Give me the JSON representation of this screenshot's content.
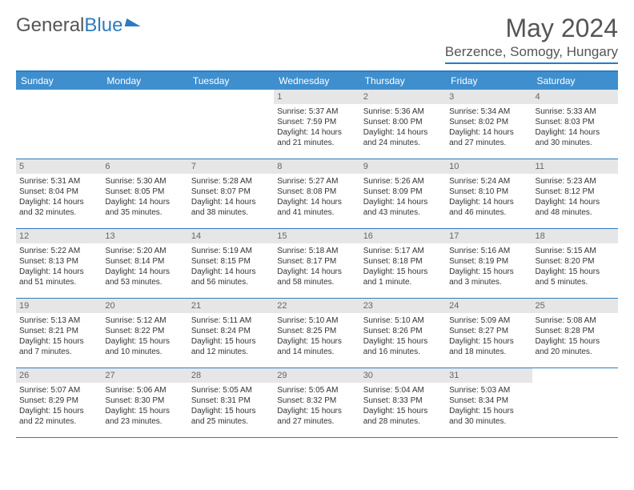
{
  "branding": {
    "logo_text_1": "General",
    "logo_text_2": "Blue"
  },
  "header": {
    "month_title": "May 2024",
    "location": "Berzence, Somogy, Hungary"
  },
  "dow": [
    "Sunday",
    "Monday",
    "Tuesday",
    "Wednesday",
    "Thursday",
    "Friday",
    "Saturday"
  ],
  "colors": {
    "header_bar": "#3f8fce",
    "rule": "#2f7bbf",
    "day_num_bg": "#e6e6e6",
    "text": "#333333"
  },
  "weeks": [
    [
      {
        "n": "",
        "empty": true
      },
      {
        "n": "",
        "empty": true
      },
      {
        "n": "",
        "empty": true
      },
      {
        "n": "1",
        "sr": "Sunrise: 5:37 AM",
        "ss": "Sunset: 7:59 PM",
        "dl1": "Daylight: 14 hours",
        "dl2": "and 21 minutes."
      },
      {
        "n": "2",
        "sr": "Sunrise: 5:36 AM",
        "ss": "Sunset: 8:00 PM",
        "dl1": "Daylight: 14 hours",
        "dl2": "and 24 minutes."
      },
      {
        "n": "3",
        "sr": "Sunrise: 5:34 AM",
        "ss": "Sunset: 8:02 PM",
        "dl1": "Daylight: 14 hours",
        "dl2": "and 27 minutes."
      },
      {
        "n": "4",
        "sr": "Sunrise: 5:33 AM",
        "ss": "Sunset: 8:03 PM",
        "dl1": "Daylight: 14 hours",
        "dl2": "and 30 minutes."
      }
    ],
    [
      {
        "n": "5",
        "sr": "Sunrise: 5:31 AM",
        "ss": "Sunset: 8:04 PM",
        "dl1": "Daylight: 14 hours",
        "dl2": "and 32 minutes."
      },
      {
        "n": "6",
        "sr": "Sunrise: 5:30 AM",
        "ss": "Sunset: 8:05 PM",
        "dl1": "Daylight: 14 hours",
        "dl2": "and 35 minutes."
      },
      {
        "n": "7",
        "sr": "Sunrise: 5:28 AM",
        "ss": "Sunset: 8:07 PM",
        "dl1": "Daylight: 14 hours",
        "dl2": "and 38 minutes."
      },
      {
        "n": "8",
        "sr": "Sunrise: 5:27 AM",
        "ss": "Sunset: 8:08 PM",
        "dl1": "Daylight: 14 hours",
        "dl2": "and 41 minutes."
      },
      {
        "n": "9",
        "sr": "Sunrise: 5:26 AM",
        "ss": "Sunset: 8:09 PM",
        "dl1": "Daylight: 14 hours",
        "dl2": "and 43 minutes."
      },
      {
        "n": "10",
        "sr": "Sunrise: 5:24 AM",
        "ss": "Sunset: 8:10 PM",
        "dl1": "Daylight: 14 hours",
        "dl2": "and 46 minutes."
      },
      {
        "n": "11",
        "sr": "Sunrise: 5:23 AM",
        "ss": "Sunset: 8:12 PM",
        "dl1": "Daylight: 14 hours",
        "dl2": "and 48 minutes."
      }
    ],
    [
      {
        "n": "12",
        "sr": "Sunrise: 5:22 AM",
        "ss": "Sunset: 8:13 PM",
        "dl1": "Daylight: 14 hours",
        "dl2": "and 51 minutes."
      },
      {
        "n": "13",
        "sr": "Sunrise: 5:20 AM",
        "ss": "Sunset: 8:14 PM",
        "dl1": "Daylight: 14 hours",
        "dl2": "and 53 minutes."
      },
      {
        "n": "14",
        "sr": "Sunrise: 5:19 AM",
        "ss": "Sunset: 8:15 PM",
        "dl1": "Daylight: 14 hours",
        "dl2": "and 56 minutes."
      },
      {
        "n": "15",
        "sr": "Sunrise: 5:18 AM",
        "ss": "Sunset: 8:17 PM",
        "dl1": "Daylight: 14 hours",
        "dl2": "and 58 minutes."
      },
      {
        "n": "16",
        "sr": "Sunrise: 5:17 AM",
        "ss": "Sunset: 8:18 PM",
        "dl1": "Daylight: 15 hours",
        "dl2": "and 1 minute."
      },
      {
        "n": "17",
        "sr": "Sunrise: 5:16 AM",
        "ss": "Sunset: 8:19 PM",
        "dl1": "Daylight: 15 hours",
        "dl2": "and 3 minutes."
      },
      {
        "n": "18",
        "sr": "Sunrise: 5:15 AM",
        "ss": "Sunset: 8:20 PM",
        "dl1": "Daylight: 15 hours",
        "dl2": "and 5 minutes."
      }
    ],
    [
      {
        "n": "19",
        "sr": "Sunrise: 5:13 AM",
        "ss": "Sunset: 8:21 PM",
        "dl1": "Daylight: 15 hours",
        "dl2": "and 7 minutes."
      },
      {
        "n": "20",
        "sr": "Sunrise: 5:12 AM",
        "ss": "Sunset: 8:22 PM",
        "dl1": "Daylight: 15 hours",
        "dl2": "and 10 minutes."
      },
      {
        "n": "21",
        "sr": "Sunrise: 5:11 AM",
        "ss": "Sunset: 8:24 PM",
        "dl1": "Daylight: 15 hours",
        "dl2": "and 12 minutes."
      },
      {
        "n": "22",
        "sr": "Sunrise: 5:10 AM",
        "ss": "Sunset: 8:25 PM",
        "dl1": "Daylight: 15 hours",
        "dl2": "and 14 minutes."
      },
      {
        "n": "23",
        "sr": "Sunrise: 5:10 AM",
        "ss": "Sunset: 8:26 PM",
        "dl1": "Daylight: 15 hours",
        "dl2": "and 16 minutes."
      },
      {
        "n": "24",
        "sr": "Sunrise: 5:09 AM",
        "ss": "Sunset: 8:27 PM",
        "dl1": "Daylight: 15 hours",
        "dl2": "and 18 minutes."
      },
      {
        "n": "25",
        "sr": "Sunrise: 5:08 AM",
        "ss": "Sunset: 8:28 PM",
        "dl1": "Daylight: 15 hours",
        "dl2": "and 20 minutes."
      }
    ],
    [
      {
        "n": "26",
        "sr": "Sunrise: 5:07 AM",
        "ss": "Sunset: 8:29 PM",
        "dl1": "Daylight: 15 hours",
        "dl2": "and 22 minutes."
      },
      {
        "n": "27",
        "sr": "Sunrise: 5:06 AM",
        "ss": "Sunset: 8:30 PM",
        "dl1": "Daylight: 15 hours",
        "dl2": "and 23 minutes."
      },
      {
        "n": "28",
        "sr": "Sunrise: 5:05 AM",
        "ss": "Sunset: 8:31 PM",
        "dl1": "Daylight: 15 hours",
        "dl2": "and 25 minutes."
      },
      {
        "n": "29",
        "sr": "Sunrise: 5:05 AM",
        "ss": "Sunset: 8:32 PM",
        "dl1": "Daylight: 15 hours",
        "dl2": "and 27 minutes."
      },
      {
        "n": "30",
        "sr": "Sunrise: 5:04 AM",
        "ss": "Sunset: 8:33 PM",
        "dl1": "Daylight: 15 hours",
        "dl2": "and 28 minutes."
      },
      {
        "n": "31",
        "sr": "Sunrise: 5:03 AM",
        "ss": "Sunset: 8:34 PM",
        "dl1": "Daylight: 15 hours",
        "dl2": "and 30 minutes."
      },
      {
        "n": "",
        "empty": true
      }
    ]
  ]
}
